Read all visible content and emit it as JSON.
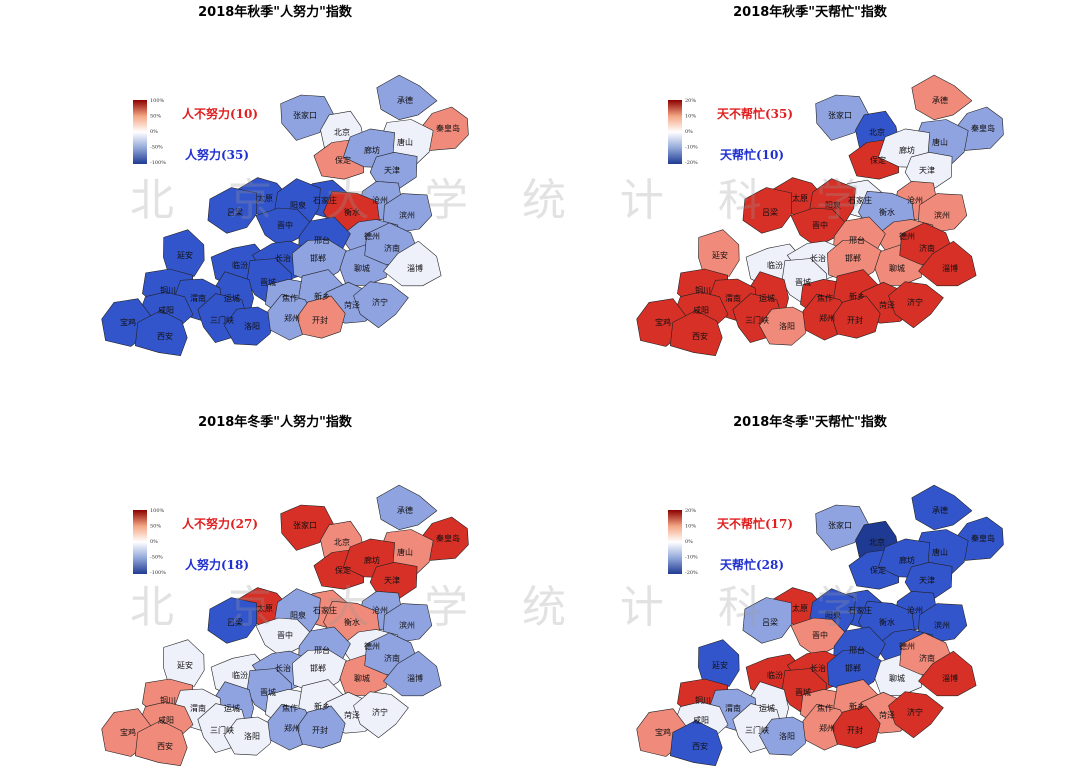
{
  "watermark": "北 京 大 学 统 计 科 学",
  "cities": [
    "承德",
    "张家口",
    "北京",
    "秦皇岛",
    "唐山",
    "保定",
    "廊坊",
    "天津",
    "石家庄",
    "沧州",
    "太原",
    "阳泉",
    "吕梁",
    "晋中",
    "衡水",
    "滨州",
    "德州",
    "邢台",
    "延安",
    "临汾",
    "长治",
    "邯郸",
    "聊城",
    "济南",
    "淄博",
    "晋城",
    "运城",
    "焦作",
    "新乡",
    "菏泽",
    "济宁",
    "铜川",
    "渭南",
    "咸阳",
    "宝鸡",
    "西安",
    "三门峡",
    "洛阳",
    "郑州",
    "开封"
  ],
  "maps": [
    {
      "title": "2018年秋季\"人努力\"指数",
      "legend_ticks": [
        "100%",
        "50%",
        "0%",
        "-50%",
        "-100%"
      ],
      "legend_top": "人不努力(10)",
      "legend_bottom": "人努力(35)",
      "region_colors": [
        "#8fa3e0",
        "#8fa3e0",
        "#eef0fa",
        "#f08a7a",
        "#eef0fa",
        "#f08a7a",
        "#8fa3e0",
        "#8fa3e0",
        "#3355cc",
        "#8fa3e0",
        "#3355cc",
        "#3355cc",
        "#3355cc",
        "#3355cc",
        "#d73027",
        "#8fa3e0",
        "#8fa3e0",
        "#3355cc",
        "#3355cc",
        "#3355cc",
        "#3355cc",
        "#8fa3e0",
        "#8fa3e0",
        "#8fa3e0",
        "#eef0fa",
        "#3355cc",
        "#3355cc",
        "#8fa3e0",
        "#8fa3e0",
        "#8fa3e0",
        "#8fa3e0",
        "#3355cc",
        "#3355cc",
        "#3355cc",
        "#3355cc",
        "#3355cc",
        "#3355cc",
        "#3355cc",
        "#8fa3e0",
        "#f08a7a"
      ]
    },
    {
      "title": "2018年秋季\"天帮忙\"指数",
      "legend_ticks": [
        "20%",
        "10%",
        "0%",
        "-10%",
        "-20%"
      ],
      "legend_top": "天不帮忙(35)",
      "legend_bottom": "天帮忙(10)",
      "region_colors": [
        "#f08a7a",
        "#8fa3e0",
        "#3355cc",
        "#8fa3e0",
        "#8fa3e0",
        "#d73027",
        "#eef0fa",
        "#eef0fa",
        "#eef0fa",
        "#f08a7a",
        "#d73027",
        "#d73027",
        "#d73027",
        "#d73027",
        "#8fa3e0",
        "#f08a7a",
        "#f08a7a",
        "#f08a7a",
        "#f08a7a",
        "#eef0fa",
        "#eef0fa",
        "#f08a7a",
        "#f08a7a",
        "#d73027",
        "#d73027",
        "#eef0fa",
        "#d73027",
        "#d73027",
        "#d73027",
        "#d73027",
        "#d73027",
        "#d73027",
        "#d73027",
        "#d73027",
        "#d73027",
        "#d73027",
        "#d73027",
        "#f08a7a",
        "#d73027",
        "#d73027"
      ]
    },
    {
      "title": "2018年冬季\"人努力\"指数",
      "legend_ticks": [
        "100%",
        "50%",
        "0%",
        "-50%",
        "-100%"
      ],
      "legend_top": "人不努力(27)",
      "legend_bottom": "人努力(18)",
      "region_colors": [
        "#8fa3e0",
        "#d73027",
        "#f08a7a",
        "#d73027",
        "#f08a7a",
        "#d73027",
        "#d73027",
        "#d73027",
        "#f08a7a",
        "#8fa3e0",
        "#d73027",
        "#8fa3e0",
        "#3355cc",
        "#eef0fa",
        "#f08a7a",
        "#8fa3e0",
        "#eef0fa",
        "#8fa3e0",
        "#eef0fa",
        "#eef0fa",
        "#8fa3e0",
        "#eef0fa",
        "#f08a7a",
        "#8fa3e0",
        "#8fa3e0",
        "#8fa3e0",
        "#8fa3e0",
        "#eef0fa",
        "#eef0fa",
        "#eef0fa",
        "#eef0fa",
        "#f08a7a",
        "#eef0fa",
        "#f08a7a",
        "#f08a7a",
        "#f08a7a",
        "#eef0fa",
        "#eef0fa",
        "#8fa3e0",
        "#8fa3e0"
      ]
    },
    {
      "title": "2018年冬季\"天帮忙\"指数",
      "legend_ticks": [
        "20%",
        "10%",
        "0%",
        "-10%",
        "-20%"
      ],
      "legend_top": "天不帮忙(17)",
      "legend_bottom": "天帮忙(28)",
      "region_colors": [
        "#3355cc",
        "#8fa3e0",
        "#1f3a93",
        "#3355cc",
        "#3355cc",
        "#3355cc",
        "#3355cc",
        "#3355cc",
        "#3355cc",
        "#3355cc",
        "#d73027",
        "#3355cc",
        "#8fa3e0",
        "#f08a7a",
        "#3355cc",
        "#3355cc",
        "#3355cc",
        "#3355cc",
        "#3355cc",
        "#d73027",
        "#d73027",
        "#3355cc",
        "#eef0fa",
        "#f08a7a",
        "#d73027",
        "#d73027",
        "#eef0fa",
        "#f08a7a",
        "#f08a7a",
        "#f08a7a",
        "#d73027",
        "#d73027",
        "#8fa3e0",
        "#eef0fa",
        "#f08a7a",
        "#3355cc",
        "#eef0fa",
        "#8fa3e0",
        "#f08a7a",
        "#d73027"
      ]
    }
  ],
  "legend_colors": [
    "#8b0000",
    "#f4a582",
    "#ffffff",
    "#92a8d9",
    "#1f3a93"
  ],
  "legend_top_color": "#e02020",
  "legend_bottom_color": "#2030d0"
}
